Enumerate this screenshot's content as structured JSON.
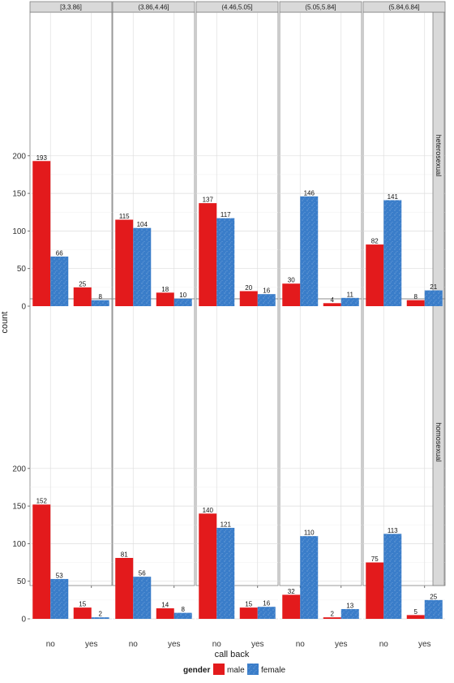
{
  "chart_data": {
    "type": "bar",
    "xlabel": "call back",
    "ylabel": "count",
    "ylim": [
      0,
      220
    ],
    "yticks": [
      0,
      50,
      100,
      150,
      200
    ],
    "categories": [
      "no",
      "yes"
    ],
    "column_facets": [
      "[3,3.86]",
      "(3.86,4.46]",
      "(4.46,5.05]",
      "(5.05,5.84]",
      "(5.84,6.84]"
    ],
    "row_facets": [
      "heterosexual",
      "homosexual"
    ],
    "legend": {
      "title": "gender",
      "position": "bottom",
      "entries": [
        {
          "label": "male",
          "color": "#e31a1c"
        },
        {
          "label": "female",
          "color": "#3a7dc9"
        }
      ]
    },
    "grid": true,
    "series": [
      {
        "name": "male",
        "color": "#e31a1c",
        "values": [
          [
            [
              193,
              25
            ],
            [
              115,
              18
            ],
            [
              137,
              20
            ],
            [
              30,
              4
            ],
            [
              82,
              8
            ]
          ],
          [
            [
              152,
              15
            ],
            [
              81,
              14
            ],
            [
              140,
              15
            ],
            [
              32,
              2
            ],
            [
              75,
              5
            ]
          ]
        ]
      },
      {
        "name": "female",
        "color": "#3a7dc9",
        "values": [
          [
            [
              66,
              8
            ],
            [
              104,
              10
            ],
            [
              117,
              16
            ],
            [
              146,
              11
            ],
            [
              141,
              21
            ]
          ],
          [
            [
              53,
              2
            ],
            [
              56,
              8
            ],
            [
              121,
              16
            ],
            [
              110,
              13
            ],
            [
              113,
              25
            ]
          ]
        ]
      }
    ]
  }
}
